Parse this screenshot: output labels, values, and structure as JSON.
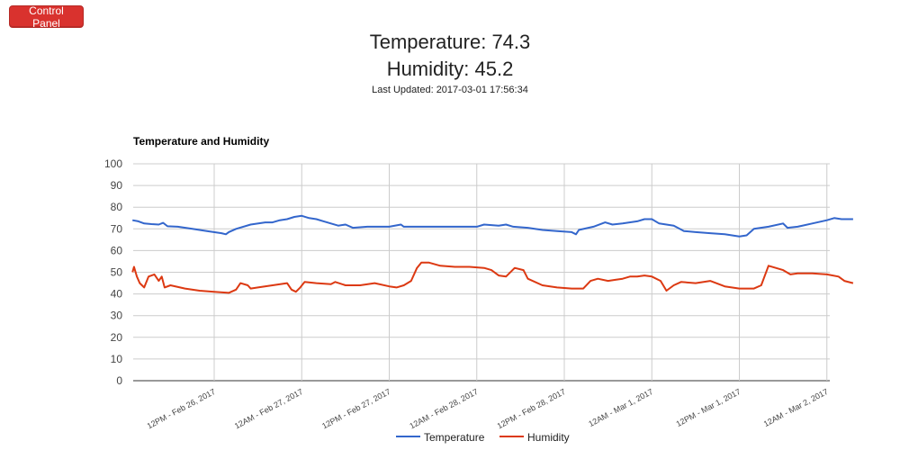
{
  "app": {
    "control_panel_label": "Control Panel"
  },
  "readouts": {
    "temperature_text": "Temperature: 74.3",
    "humidity_text": "Humidity: 45.2",
    "last_updated_text": "Last Updated: 2017-03-01 17:56:34"
  },
  "colors": {
    "button": "#d9322e",
    "temperature": "#3366cc",
    "humidity": "#dc3912",
    "grid": "#cccccc"
  },
  "chart_data": {
    "type": "line",
    "title": "Temperature and Humidity",
    "xlabel": "",
    "ylabel": "",
    "ylim": [
      0,
      100
    ],
    "yticks": [
      0,
      10,
      20,
      30,
      40,
      50,
      60,
      70,
      80,
      90,
      100
    ],
    "x_axis_hours": [
      -12,
      36
    ],
    "x_ticks": [
      {
        "hour": 0,
        "label": "12PM - Feb 26, 2017"
      },
      {
        "hour": 6,
        "label": "12AM - Feb 27, 2017"
      },
      {
        "hour": 12,
        "label": "12PM - Feb 27, 2017"
      },
      {
        "hour": 18,
        "label": "12AM - Feb 28, 2017"
      },
      {
        "hour": 24,
        "label": "12PM - Feb 28, 2017"
      },
      {
        "hour": 30,
        "label": "12AM - Mar 1, 2017"
      },
      {
        "hour": 36,
        "label": "12PM - Mar 1, 2017"
      },
      {
        "hour": 42,
        "label": "12AM - Mar 2, 2017"
      }
    ],
    "grid": true,
    "legend_position": "bottom",
    "series": [
      {
        "name": "Temperature",
        "color": "#3366cc",
        "points": [
          [
            -5.6,
            74
          ],
          [
            -5.2,
            73.5
          ],
          [
            -4.8,
            72.5
          ],
          [
            -4.3,
            72.2
          ],
          [
            -3.8,
            72
          ],
          [
            -3.5,
            72.8
          ],
          [
            -3.2,
            71.2
          ],
          [
            -2.5,
            71
          ],
          [
            -1.5,
            70
          ],
          [
            -0.5,
            69
          ],
          [
            0.5,
            68
          ],
          [
            0.8,
            67.5
          ],
          [
            1.0,
            68.5
          ],
          [
            1.5,
            70
          ],
          [
            2.5,
            72
          ],
          [
            3.5,
            73
          ],
          [
            4.0,
            73
          ],
          [
            4.5,
            74
          ],
          [
            5.0,
            74.5
          ],
          [
            5.5,
            75.5
          ],
          [
            6.0,
            76
          ],
          [
            6.5,
            75
          ],
          [
            7.0,
            74.5
          ],
          [
            7.5,
            73.5
          ],
          [
            8.0,
            72.5
          ],
          [
            8.5,
            71.5
          ],
          [
            9.0,
            72
          ],
          [
            9.5,
            70.5
          ],
          [
            10.5,
            71
          ],
          [
            11.5,
            71
          ],
          [
            12.0,
            71
          ],
          [
            12.8,
            72
          ],
          [
            13.0,
            71
          ],
          [
            14.0,
            71
          ],
          [
            15.0,
            71
          ],
          [
            16.0,
            71
          ],
          [
            17.0,
            71
          ],
          [
            18.0,
            71
          ],
          [
            18.5,
            72
          ],
          [
            19.5,
            71.5
          ],
          [
            20.0,
            72
          ],
          [
            20.5,
            71
          ],
          [
            21.5,
            70.5
          ],
          [
            22.5,
            69.5
          ],
          [
            23.5,
            69
          ],
          [
            24.5,
            68.5
          ],
          [
            24.8,
            67.5
          ],
          [
            25.0,
            69.5
          ],
          [
            26.0,
            71
          ],
          [
            26.8,
            73
          ],
          [
            27.3,
            72
          ],
          [
            28.0,
            72.5
          ],
          [
            29.0,
            73.5
          ],
          [
            29.5,
            74.5
          ],
          [
            30.0,
            74.5
          ],
          [
            30.5,
            72.5
          ],
          [
            31.5,
            71.5
          ],
          [
            32.2,
            69
          ],
          [
            33.0,
            68.5
          ],
          [
            34.0,
            68
          ],
          [
            35.0,
            67.5
          ],
          [
            36.0,
            66.5
          ],
          [
            36.5,
            67
          ],
          [
            37.0,
            70
          ],
          [
            38.0,
            71
          ],
          [
            39.0,
            72.5
          ],
          [
            39.3,
            70.5
          ],
          [
            40.0,
            71
          ],
          [
            41.0,
            72.5
          ],
          [
            42.0,
            74
          ],
          [
            42.5,
            75
          ],
          [
            43.0,
            74.5
          ],
          [
            43.8,
            74.5
          ]
        ]
      },
      {
        "name": "Humidity",
        "color": "#dc3912",
        "points": [
          [
            -5.6,
            50
          ],
          [
            -5.5,
            52.5
          ],
          [
            -5.3,
            48
          ],
          [
            -5.1,
            45
          ],
          [
            -4.8,
            43
          ],
          [
            -4.5,
            48
          ],
          [
            -4.1,
            49
          ],
          [
            -3.8,
            46
          ],
          [
            -3.6,
            48
          ],
          [
            -3.4,
            43
          ],
          [
            -3.0,
            44
          ],
          [
            -2.0,
            42.5
          ],
          [
            -1.0,
            41.5
          ],
          [
            0.0,
            41
          ],
          [
            1.0,
            40.5
          ],
          [
            1.5,
            42
          ],
          [
            1.8,
            45
          ],
          [
            2.3,
            44
          ],
          [
            2.5,
            42.5
          ],
          [
            3.0,
            43
          ],
          [
            4.0,
            44
          ],
          [
            5.0,
            45
          ],
          [
            5.3,
            42
          ],
          [
            5.6,
            41
          ],
          [
            5.9,
            43
          ],
          [
            6.2,
            45.5
          ],
          [
            7.0,
            45
          ],
          [
            8.0,
            44.5
          ],
          [
            8.3,
            45.5
          ],
          [
            9.0,
            44
          ],
          [
            10.0,
            44
          ],
          [
            11.0,
            45
          ],
          [
            12.0,
            43.5
          ],
          [
            12.5,
            43
          ],
          [
            13.0,
            44
          ],
          [
            13.5,
            46
          ],
          [
            13.9,
            52
          ],
          [
            14.2,
            54.5
          ],
          [
            14.7,
            54.5
          ],
          [
            15.5,
            53
          ],
          [
            16.5,
            52.5
          ],
          [
            17.5,
            52.5
          ],
          [
            18.5,
            52
          ],
          [
            19.0,
            51
          ],
          [
            19.5,
            48.5
          ],
          [
            20.0,
            48
          ],
          [
            20.6,
            52
          ],
          [
            21.2,
            51
          ],
          [
            21.5,
            47
          ],
          [
            22.5,
            44
          ],
          [
            23.5,
            43
          ],
          [
            24.5,
            42.5
          ],
          [
            25.3,
            42.5
          ],
          [
            25.8,
            46
          ],
          [
            26.3,
            47
          ],
          [
            27.0,
            46
          ],
          [
            27.5,
            46.5
          ],
          [
            28.0,
            47
          ],
          [
            28.5,
            48
          ],
          [
            29.0,
            48
          ],
          [
            29.5,
            48.5
          ],
          [
            30.0,
            48
          ],
          [
            30.6,
            46
          ],
          [
            31.0,
            41.5
          ],
          [
            31.5,
            44
          ],
          [
            32.0,
            45.5
          ],
          [
            33.0,
            45
          ],
          [
            34.0,
            46
          ],
          [
            35.0,
            43.5
          ],
          [
            36.0,
            42.5
          ],
          [
            37.0,
            42.5
          ],
          [
            37.5,
            44
          ],
          [
            38.0,
            53
          ],
          [
            38.5,
            52
          ],
          [
            39.0,
            51
          ],
          [
            39.5,
            49
          ],
          [
            40.0,
            49.5
          ],
          [
            41.0,
            49.5
          ],
          [
            42.0,
            49
          ],
          [
            42.8,
            48
          ],
          [
            43.2,
            46
          ],
          [
            43.8,
            45
          ]
        ]
      }
    ]
  }
}
